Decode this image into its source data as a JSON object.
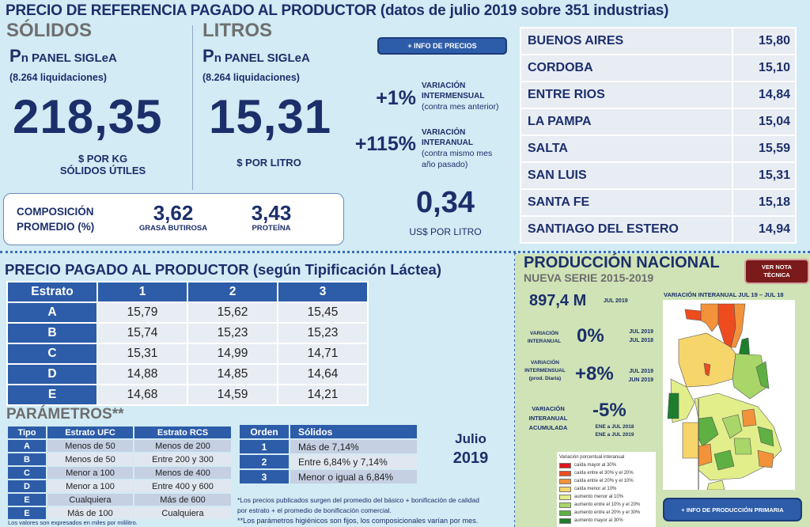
{
  "header": {
    "title": "PRECIO DE REFERENCIA PAGADO AL PRODUCTOR (datos de julio 2019 sobre 351 industrias)"
  },
  "solidos": {
    "heading": "SÓLIDOS",
    "panel_p": "P",
    "panel_rest": "n PANEL SIGLeA",
    "liquidaciones": "(8.264 liquidaciones)",
    "value": "218,35",
    "unit_line1": "$ POR KG",
    "unit_line2": "SÓLIDOS ÚTILES"
  },
  "litros": {
    "heading": "LITROS",
    "panel_p": "P",
    "panel_rest": "n PANEL SIGLeA",
    "liquidaciones": "(8.264 liquidaciones)",
    "value": "15,31",
    "unit": "$ POR LITRO"
  },
  "composicion": {
    "label_line1": "COMPOSICIÓN",
    "label_line2": "PROMEDIO (%)",
    "grasa_value": "3,62",
    "grasa_label": "GRASA BUTIROSA",
    "proteina_value": "3,43",
    "proteina_label": "PROTEÍNA"
  },
  "precios_button": "+ INFO DE PRECIOS",
  "variaciones": {
    "intermensual": {
      "value": "+1%",
      "line1": "VARIACIÓN",
      "line2": "INTERMENSUAL",
      "line3": "(contra mes anterior)"
    },
    "interanual": {
      "value": "+115%",
      "line1": "VARIACIÓN",
      "line2": "INTERANUAL",
      "line3": "(contra mismo mes",
      "line4": "año pasado)"
    }
  },
  "usd": {
    "value": "0,34",
    "unit": "US$ POR LITRO"
  },
  "provincias": [
    {
      "name": "BUENOS AIRES",
      "value": "15,80"
    },
    {
      "name": "CORDOBA",
      "value": "15,10"
    },
    {
      "name": "ENTRE RIOS",
      "value": "14,84"
    },
    {
      "name": "LA PAMPA",
      "value": "15,04"
    },
    {
      "name": "SALTA",
      "value": "15,59"
    },
    {
      "name": "SAN LUIS",
      "value": "15,31"
    },
    {
      "name": "SANTA FE",
      "value": "15,18"
    },
    {
      "name": "SANTIAGO DEL ESTERO",
      "value": "14,94"
    }
  ],
  "tipificacion": {
    "title": "PRECIO PAGADO AL PRODUCTOR (según Tipificación Láctea)",
    "headers": [
      "Estrato",
      "1",
      "2",
      "3"
    ],
    "rows": [
      {
        "key": "A",
        "values": [
          "15,79",
          "15,62",
          "15,45"
        ]
      },
      {
        "key": "B",
        "values": [
          "15,74",
          "15,23",
          "15,23"
        ]
      },
      {
        "key": "C",
        "values": [
          "15,31",
          "14,99",
          "14,71"
        ]
      },
      {
        "key": "D",
        "values": [
          "14,88",
          "14,85",
          "14,64"
        ]
      },
      {
        "key": "E",
        "values": [
          "14,68",
          "14,59",
          "14,21"
        ]
      }
    ]
  },
  "parametros": {
    "title": "PARÁMETROS**",
    "headers": [
      "Tipo",
      "Estrato UFC",
      "Estrato RCS"
    ],
    "rows": [
      {
        "key": "A",
        "ufc": "Menos de 50",
        "rcs": "Menos de 200"
      },
      {
        "key": "B",
        "ufc": "Menos de 50",
        "rcs": "Entre 200 y 300"
      },
      {
        "key": "C",
        "ufc": "Menor a 100",
        "rcs": "Menos de 400"
      },
      {
        "key": "D",
        "ufc": "Menor a 100",
        "rcs": "Entre 400 y 600"
      },
      {
        "key": "E",
        "ufc": "Cualquiera",
        "rcs": "Más de 600"
      },
      {
        "key": "E",
        "ufc": "Más de 100",
        "rcs": "Cualquiera"
      }
    ],
    "note": "Los valores son expresados en miles por mililitro."
  },
  "orden": {
    "headers": [
      "Orden",
      "Sólidos"
    ],
    "rows": [
      {
        "key": "1",
        "value": "Más de 7,14%"
      },
      {
        "key": "2",
        "value": "Entre 6,84% y 7,14%"
      },
      {
        "key": "3",
        "value": "Menor o igual a 6,84%"
      }
    ]
  },
  "periodo": {
    "month": "Julio",
    "year": "2019"
  },
  "footnotes": {
    "f1_line1": "*Los precios publicados surgen del promedio del básico + bonificación de calidad",
    "f1_line2": "por estrato + el promedio de bonificación comercial.",
    "f2": "**Los parámetros higiénicos son fijos, los composicionales varían por mes."
  },
  "produccion": {
    "title": "PRODUCCIÓN NACIONAL",
    "subtitle": "NUEVA SERIE 2015-2019",
    "nota_button_line1": "VER NOTA",
    "nota_button_line2": "TÉCNICA",
    "volume": "897,4 M",
    "volume_period": "JUL 2019",
    "map_title": "VARIACIÓN INTERANUAL JUL 19 – JUL 18",
    "interanual": {
      "label_line1": "VARIACIÓN",
      "label_line2": "INTERANUAL",
      "value": "0%",
      "p1": "JUL 2019",
      "p2": "JUL 2018"
    },
    "intermensual": {
      "label_line1": "VARIACIÓN",
      "label_line2": "INTERMENSUAL",
      "label_line3": "(prod. Diaria)",
      "value": "+8%",
      "p1": "JUL 2019",
      "p2": "JUN 2019"
    },
    "acumulada": {
      "label_line1": "VARIACIÓN",
      "label_line2": "INTERANUAL",
      "label_line3": "ACUMULADA",
      "value": "-5%",
      "p1": "ENE a JUL 2018",
      "p2": "ENE a JUL 2019"
    },
    "legend": {
      "title": "Variación porcentual interanual",
      "items": [
        {
          "label": "caída mayor al 30%",
          "color": "#e0151b"
        },
        {
          "label": "caída entre el 30% y el 20%",
          "color": "#ee4b1f"
        },
        {
          "label": "caída entre el 20% y el 10%",
          "color": "#f2923a"
        },
        {
          "label": "caída menor al 10%",
          "color": "#f6d56a"
        },
        {
          "label": "aumento menor al 10%",
          "color": "#e2ee8a"
        },
        {
          "label": "aumento entre el 10% y el 20%",
          "color": "#a9d669"
        },
        {
          "label": "aumento entre el 20% y el 30%",
          "color": "#5db041"
        },
        {
          "label": "aumento mayor al 30%",
          "color": "#1d7e2c"
        }
      ]
    },
    "info_button": "+ INFO DE PRODUCCIÓN PRIMARIA"
  }
}
